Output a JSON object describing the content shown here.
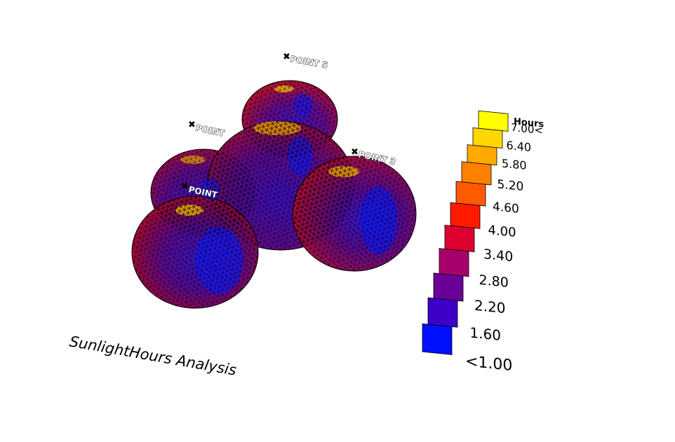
{
  "analysis_title": "SunlightHours Analysis",
  "points": [
    {
      "id": "p5",
      "label": "POINT 5"
    },
    {
      "id": "p1",
      "label": "POINT"
    },
    {
      "id": "p3",
      "label": "POINT 3"
    },
    {
      "id": "p2",
      "label": "POINT"
    }
  ],
  "legend": {
    "unit": "Hours",
    "labels": [
      "7.00<",
      "6.40",
      "5.80",
      "5.20",
      "4.60",
      "4.00",
      "3.40",
      "2.80",
      "2.20",
      "1.60",
      "<1.00"
    ],
    "colors": [
      "#ffff00",
      "#ffd700",
      "#ffaa00",
      "#ff7f00",
      "#ff5a00",
      "#ff1a00",
      "#dd0030",
      "#a8006a",
      "#6a0098",
      "#3c00c8",
      "#0010ff"
    ]
  }
}
